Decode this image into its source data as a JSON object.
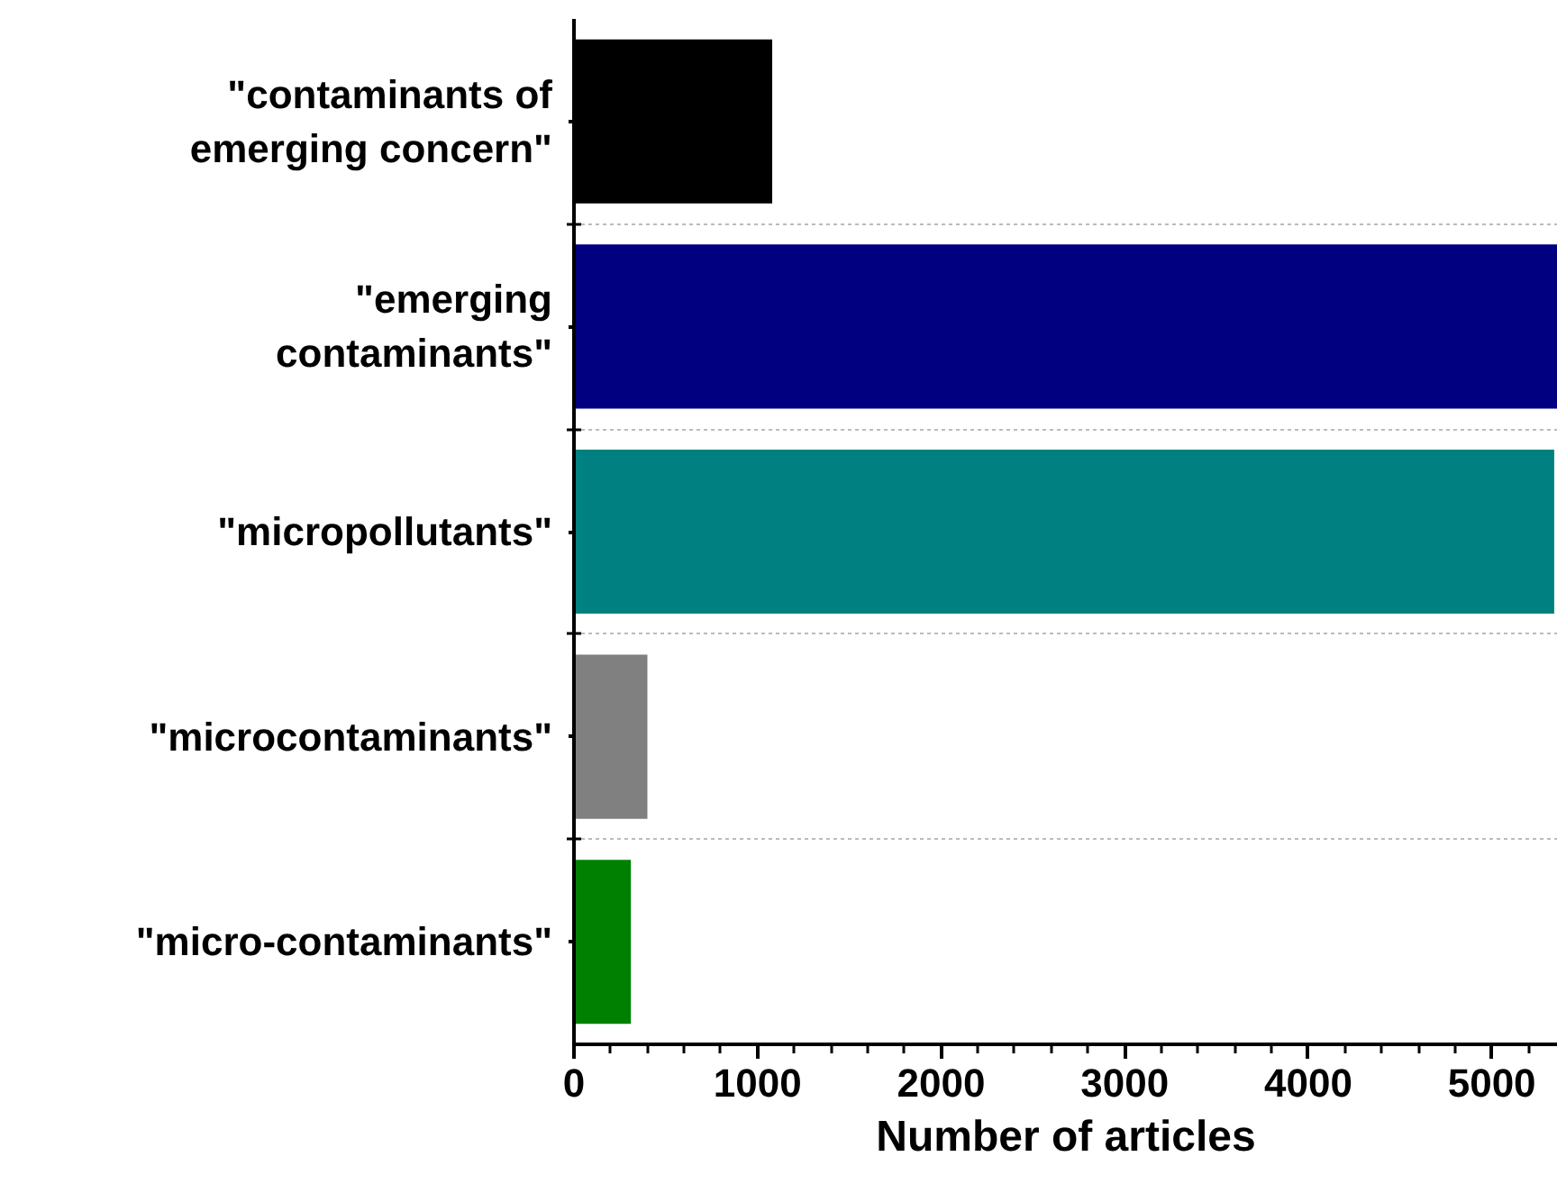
{
  "chart_data": {
    "type": "bar",
    "orientation": "horizontal",
    "xlabel": "Number of articles",
    "categories": [
      "\"contaminants of emerging concern\"",
      "\"emerging contaminants\"",
      "\"micropollutants\"",
      "\"microcontaminants\"",
      "\"micro-contaminants\""
    ],
    "values": [
      1080,
      5360,
      5340,
      400,
      310
    ],
    "colors": [
      "#000000",
      "#000080",
      "#008080",
      "#808080",
      "#008000"
    ],
    "xlim": [
      0,
      5360
    ],
    "xticks": [
      0,
      1000,
      2000,
      3000,
      4000,
      5000
    ],
    "grid": "y"
  }
}
